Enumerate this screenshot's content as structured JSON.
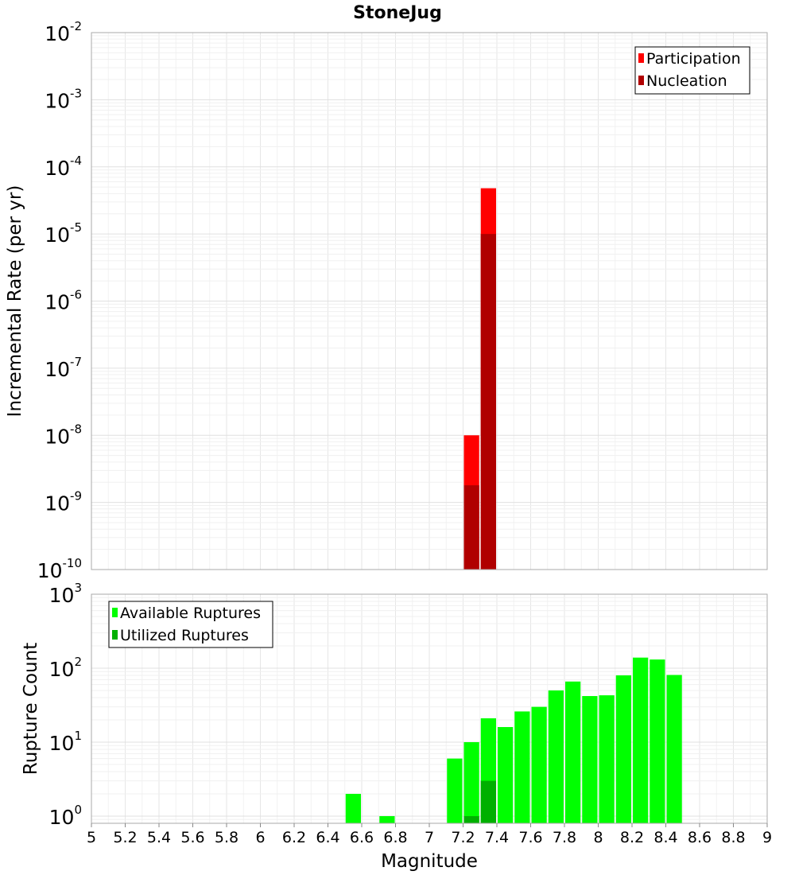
{
  "title": "StoneJug",
  "chart_data": [
    {
      "type": "bar",
      "title": "StoneJug",
      "xlabel": "",
      "ylabel": "Incremental Rate (per yr)",
      "yscale": "log",
      "ylim": [
        1e-10,
        0.01
      ],
      "xlim": [
        5,
        9
      ],
      "grid": true,
      "legend_position": "top-right",
      "y_ticks": [
        {
          "base": "10",
          "exp": "-10"
        },
        {
          "base": "10",
          "exp": "-9"
        },
        {
          "base": "10",
          "exp": "-8"
        },
        {
          "base": "10",
          "exp": "-7"
        },
        {
          "base": "10",
          "exp": "-6"
        },
        {
          "base": "10",
          "exp": "-5"
        },
        {
          "base": "10",
          "exp": "-4"
        },
        {
          "base": "10",
          "exp": "-3"
        },
        {
          "base": "10",
          "exp": "-2"
        }
      ],
      "series": [
        {
          "name": "Participation",
          "color": "#ff0000",
          "points": [
            {
              "x": 7.25,
              "y": 1e-08
            },
            {
              "x": 7.35,
              "y": 4.8e-05
            }
          ]
        },
        {
          "name": "Nucleation",
          "color": "#b00000",
          "points": [
            {
              "x": 7.25,
              "y": 1.8e-09
            },
            {
              "x": 7.35,
              "y": 1e-05
            }
          ]
        }
      ]
    },
    {
      "type": "bar",
      "title": "",
      "xlabel": "Magnitude",
      "ylabel": "Rupture Count",
      "yscale": "log",
      "ylim": [
        0.8,
        1000
      ],
      "xlim": [
        5,
        9
      ],
      "grid": true,
      "legend_position": "top-left",
      "y_ticks": [
        {
          "value": 1,
          "base": "10",
          "exp": "0"
        },
        {
          "value": 10,
          "base": "10",
          "exp": "1"
        },
        {
          "value": 100,
          "base": "10",
          "exp": "2"
        },
        {
          "value": 1000,
          "base": "10",
          "exp": "3"
        }
      ],
      "x_ticks": [
        "5",
        "5.2",
        "5.4",
        "5.6",
        "5.8",
        "6",
        "6.2",
        "6.4",
        "6.6",
        "6.8",
        "7",
        "7.2",
        "7.4",
        "7.6",
        "7.8",
        "8",
        "8.2",
        "8.4",
        "8.6",
        "8.8",
        "9"
      ],
      "series": [
        {
          "name": "Available Ruptures",
          "color": "#00ff00",
          "points": [
            {
              "x": 6.55,
              "y": 2
            },
            {
              "x": 6.75,
              "y": 1
            },
            {
              "x": 7.15,
              "y": 6
            },
            {
              "x": 7.25,
              "y": 10
            },
            {
              "x": 7.35,
              "y": 21
            },
            {
              "x": 7.45,
              "y": 16
            },
            {
              "x": 7.55,
              "y": 26
            },
            {
              "x": 7.65,
              "y": 30
            },
            {
              "x": 7.75,
              "y": 50
            },
            {
              "x": 7.85,
              "y": 66
            },
            {
              "x": 7.95,
              "y": 42
            },
            {
              "x": 8.05,
              "y": 43
            },
            {
              "x": 8.15,
              "y": 80
            },
            {
              "x": 8.25,
              "y": 139
            },
            {
              "x": 8.35,
              "y": 131
            },
            {
              "x": 8.45,
              "y": 81
            }
          ]
        },
        {
          "name": "Utilized Ruptures",
          "color": "#00b000",
          "points": [
            {
              "x": 7.25,
              "y": 1
            },
            {
              "x": 7.35,
              "y": 3
            }
          ]
        }
      ]
    }
  ]
}
